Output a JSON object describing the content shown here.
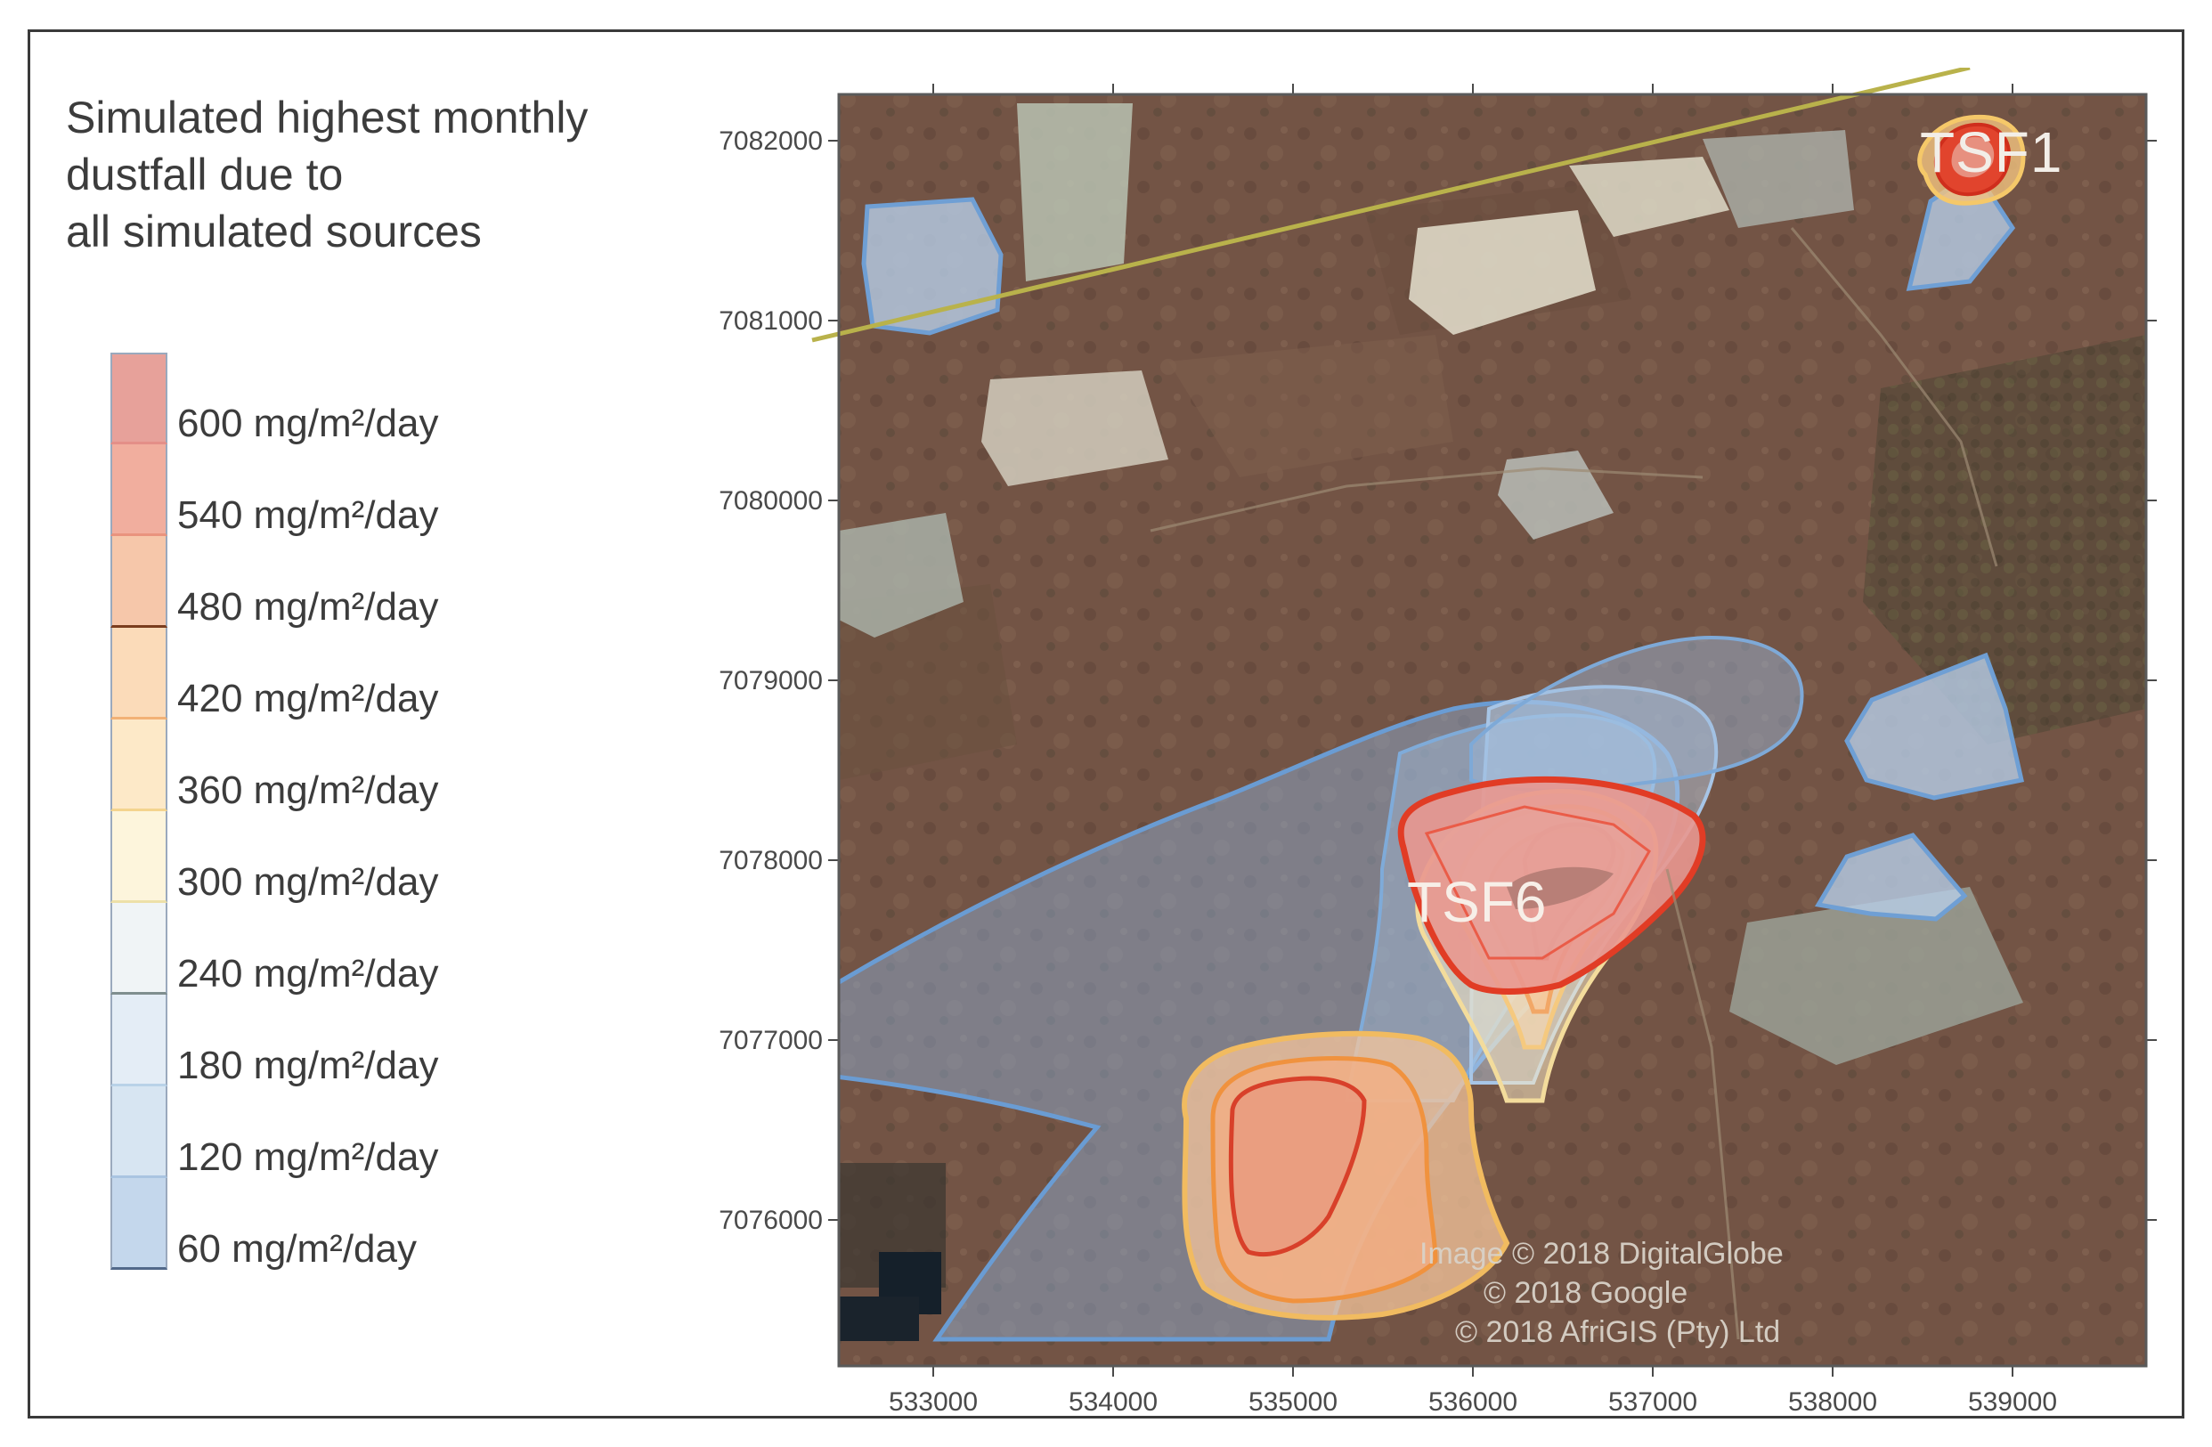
{
  "legend": {
    "title_lines": [
      "Simulated highest monthly",
      "dustfall due to",
      "all simulated sources"
    ],
    "levels": [
      {
        "label": "600 mg/m²/day",
        "value": 600,
        "color": "#e7a19a",
        "line": "#e48f88"
      },
      {
        "label": "540 mg/m²/day",
        "value": 540,
        "color": "#f1ae9e",
        "line": "#e9937e"
      },
      {
        "label": "480 mg/m²/day",
        "value": 480,
        "color": "#f6c7aa",
        "line": "#7a3d1e"
      },
      {
        "label": "420 mg/m²/day",
        "value": 420,
        "color": "#fbdbb9",
        "line": "#f2b176"
      },
      {
        "label": "360 mg/m²/day",
        "value": 360,
        "color": "#fde9c8",
        "line": "#f4d48e"
      },
      {
        "label": "300 mg/m²/day",
        "value": 300,
        "color": "#fdf5dc",
        "line": "#ede0a8"
      },
      {
        "label": "240 mg/m²/day",
        "value": 240,
        "color": "#f0f4f6",
        "line": "#7f8e8f"
      },
      {
        "label": "180 mg/m²/day",
        "value": 180,
        "color": "#e4edf6",
        "line": "#b9d2e8"
      },
      {
        "label": "120 mg/m²/day",
        "value": 120,
        "color": "#d7e5f2",
        "line": "#a9c4e1"
      },
      {
        "label": "60 mg/m²/day",
        "value": 60,
        "color": "#c4d7ec",
        "line": "#52698a"
      }
    ]
  },
  "map": {
    "x_ticks": [
      "533000",
      "534000",
      "535000",
      "536000",
      "537000",
      "538000",
      "539000"
    ],
    "y_ticks": [
      "7082000",
      "7081000",
      "7080000",
      "7079000",
      "7078000",
      "7077000",
      "7076000"
    ],
    "labels": {
      "tsf1": "TSF1",
      "tsf6": "TSF6"
    },
    "attribution": [
      "Image © 2018 DigitalGlobe",
      "© 2018 Google",
      "© 2018 AfriGIS (Pty) Ltd"
    ]
  }
}
